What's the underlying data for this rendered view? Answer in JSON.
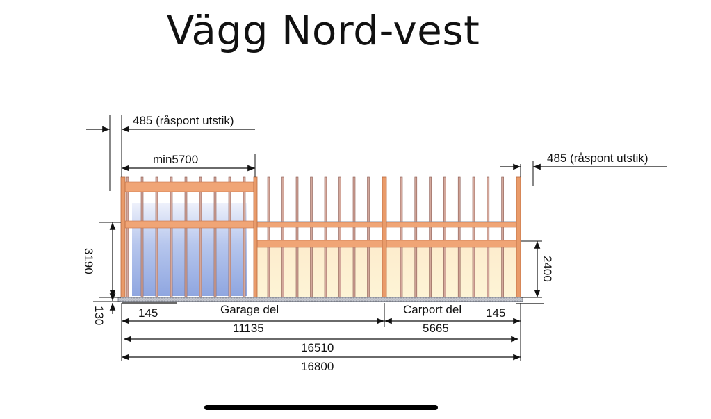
{
  "title": "Vägg Nord-vest",
  "dimensions": {
    "overhang_left": "485 (råspont utstik)",
    "overhang_right": "485 (råspont utstik)",
    "min_width": "min5700",
    "height_garage": "3190",
    "height_carport": "2400",
    "foundation": "130",
    "edge_left": "145",
    "edge_right": "145",
    "garage_length": "11135",
    "carport_length": "5665",
    "inner_length": "16510",
    "total_length": "16800"
  },
  "labels": {
    "garage": "Garage del",
    "carport": "Carport del"
  },
  "colors": {
    "timber": "#f0a576",
    "stud": "#d4a89c",
    "garage_door": "#b8c8ee",
    "wall_fill": "#fdf1cc",
    "foundation": "#b9bcc4"
  }
}
